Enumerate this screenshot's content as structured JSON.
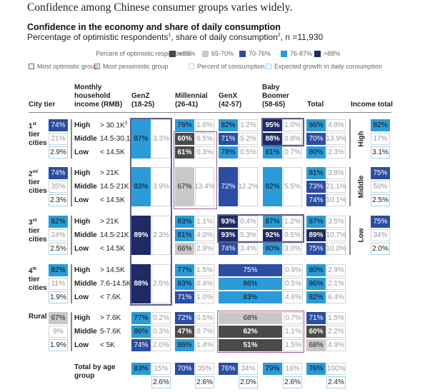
{
  "headline": "Confidence among Chinese consumer groups varies widely.",
  "chart_title": "Confidence in the economy and share of daily consumption",
  "chart_subtitle": {
    "part1": "Percentage of optimistic respondents",
    "sup1": "1",
    "part2": ", share of daily consumption",
    "sup2": "2",
    "part3": ", n =11,930"
  },
  "colors": {
    "lt65": "#4a4a4a",
    "r65_70": "#c8c8c8",
    "r70_76": "#2b4ea3",
    "r76_87": "#2a9bd8",
    "gt88": "#1f2a66",
    "most_optimistic": "#5a6290",
    "most_pessimistic": "#a35a9c",
    "consumption_border": "#d3d3d3",
    "growth_border": "#9fd3ef"
  },
  "legend": {
    "heading": "Percent of optimistic respondents",
    "bins": [
      {
        "label": "<65%",
        "key": "lt65"
      },
      {
        "label": "65-70%",
        "key": "r65_70"
      },
      {
        "label": "70-76%",
        "key": "r70_76"
      },
      {
        "label": "76-87%",
        "key": "r76_87"
      },
      {
        "label": ">88%",
        "key": "gt88"
      }
    ],
    "outlines": [
      "Most optimistic group",
      "Most pessimistic group",
      "Percent of consumption",
      "Expected growth in daily consumption"
    ]
  },
  "headers": {
    "city_tier": "City tier",
    "income": [
      "Monthly",
      "household",
      "income (RMB)"
    ],
    "genz": [
      "GenZ",
      "(18-25)"
    ],
    "millennial": [
      "Millennial",
      "(26-41)"
    ],
    "genx": [
      "GenX",
      "(42-57)"
    ],
    "boomer": [
      "Baby",
      "Boomer",
      "(58-65)"
    ],
    "total": "Total",
    "income_total": "Income total"
  },
  "income_groups": [
    "High",
    "Middle",
    "Low"
  ],
  "chart_data": {
    "type": "table",
    "title": "Confidence in the economy and share of daily consumption",
    "age_groups": [
      "GenZ (18-25)",
      "Millennial (26-41)",
      "GenX (42-57)",
      "Baby Boomer (58-65)",
      "Total"
    ],
    "tiers": [
      {
        "name": [
          "1",
          "st",
          "tier",
          "cities"
        ],
        "optimistic": "74%",
        "optimistic_bin": "r70_76",
        "consumption": "21%",
        "growth": "2.9%",
        "rows": [
          {
            "income": "High",
            "range": "> 30.1K",
            "range_sup": "3"
          },
          {
            "income": "Middle",
            "range": "14.5-30.1K"
          },
          {
            "income": "Low",
            "range": "< 14.5K"
          }
        ],
        "genz": {
          "merged": true,
          "opt": "87%",
          "bin": "r76_87",
          "cons": "3.3%"
        },
        "millennial": [
          {
            "opt": "76%",
            "bin": "r76_87",
            "cons": "1.6%"
          },
          {
            "opt": "60%",
            "bin": "lt65",
            "cons": "6.5%"
          },
          {
            "opt": "61%",
            "bin": "lt65",
            "cons": "0.3%"
          }
        ],
        "genx": [
          {
            "opt": "82%",
            "bin": "r76_87",
            "cons": "1.2%"
          },
          {
            "opt": "71%",
            "bin": "r70_76",
            "cons": "5.2%"
          },
          {
            "opt": "78%",
            "bin": "r76_87",
            "cons": "0.5%"
          }
        ],
        "boomer": [
          {
            "opt": "95%",
            "bin": "gt88",
            "cons": "1.0%"
          },
          {
            "opt": "88%",
            "bin": "gt88",
            "cons": "0.8%"
          },
          {
            "opt": "81%",
            "bin": "r76_87",
            "cons": "0.7%"
          }
        ],
        "total": [
          {
            "opt": "86%",
            "bin": "r76_87",
            "cons": "4.8%"
          },
          {
            "opt": "70%",
            "bin": "r70_76",
            "cons": "13.9%"
          },
          {
            "opt": "80%",
            "bin": "r76_87",
            "cons": "2.3%"
          }
        ]
      },
      {
        "name": [
          "2",
          "nd",
          "tier",
          "cities"
        ],
        "optimistic": "74%",
        "optimistic_bin": "r70_76",
        "consumption": "35%",
        "growth": "2.3%",
        "rows": [
          {
            "income": "High",
            "range": "> 21K"
          },
          {
            "income": "Middle",
            "range": "14.5-21K"
          },
          {
            "income": "Low",
            "range": "< 14.5K"
          }
        ],
        "genz": {
          "merged": true,
          "opt": "83%",
          "bin": "r76_87",
          "cons": "3.9%"
        },
        "millennial": {
          "merged": true,
          "opt": "67%",
          "bin": "r65_70",
          "cons": "13.4%"
        },
        "genx": {
          "merged": true,
          "opt": "72%",
          "bin": "r70_76",
          "cons": "12.2%"
        },
        "boomer": {
          "merged": true,
          "opt": "82%",
          "bin": "r76_87",
          "cons": "5.5%"
        },
        "total": [
          {
            "opt": "81%",
            "bin": "r76_87",
            "cons": "3.8%"
          },
          {
            "opt": "73%",
            "bin": "r70_76",
            "cons": "21.1%"
          },
          {
            "opt": "74%",
            "bin": "r70_76",
            "cons": "10.1%"
          }
        ]
      },
      {
        "name": [
          "3",
          "rd",
          "tier",
          "cities"
        ],
        "optimistic": "82%",
        "optimistic_bin": "r76_87",
        "consumption": "24%",
        "growth": "2.5%",
        "rows": [
          {
            "income": "High",
            "range": "> 21K"
          },
          {
            "income": "Middle",
            "range": "14.5-21K"
          },
          {
            "income": "Low",
            "range": "< 14.5K"
          }
        ],
        "genz": {
          "merged": true,
          "opt": "89%",
          "bin": "gt88",
          "cons": "2.3%"
        },
        "millennial": [
          {
            "opt": "83%",
            "bin": "r76_87",
            "cons": "1.1%"
          },
          {
            "opt": "81%",
            "bin": "r76_87",
            "cons": "4.0%"
          },
          {
            "opt": "66%",
            "bin": "r65_70",
            "cons": "2.9%"
          }
        ],
        "genx": [
          {
            "opt": "93%",
            "bin": "gt88",
            "cons": "0.4%"
          },
          {
            "opt": "93%",
            "bin": "gt88",
            "cons": "5.3%"
          },
          {
            "opt": "74%",
            "bin": "r70_76",
            "cons": "3.4%"
          }
        ],
        "boomer": [
          {
            "opt": "87%",
            "bin": "r76_87",
            "cons": "1.2%"
          },
          {
            "opt": "92%",
            "bin": "gt88",
            "cons": "0.5%"
          },
          {
            "opt": "80%",
            "bin": "r76_87",
            "cons": "3.0%"
          }
        ],
        "total": [
          {
            "opt": "87%",
            "bin": "r76_87",
            "cons": "3.5%"
          },
          {
            "opt": "89%",
            "bin": "gt88",
            "cons": "10.7%"
          },
          {
            "opt": "75%",
            "bin": "r70_76",
            "cons": "10.0%"
          }
        ]
      },
      {
        "name": [
          "4",
          "th",
          "tier",
          "cities"
        ],
        "optimistic": "82%",
        "optimistic_bin": "r76_87",
        "consumption": "11%",
        "growth": "1.9%",
        "rows": [
          {
            "income": "High",
            "range": "> 14.5K"
          },
          {
            "income": "Middle",
            "range": "7.6-14.5K"
          },
          {
            "income": "Low",
            "range": "< 7.6K"
          }
        ],
        "genz": {
          "merged": true,
          "opt": "88%",
          "bin": "gt88",
          "cons": "2.5%"
        },
        "millennial": [
          {
            "opt": "77%",
            "bin": "r76_87",
            "cons": "1.5%"
          },
          {
            "opt": "83%",
            "bin": "r76_87",
            "cons": "0.4%"
          },
          {
            "opt": "71%",
            "bin": "r70_76",
            "cons": "1.0%"
          }
        ],
        "genx_boomer": [
          {
            "opt": "75%",
            "bin": "r70_76",
            "cons": "0.9%"
          },
          {
            "opt": "86%",
            "bin": "r76_87",
            "cons": "0.5%"
          },
          {
            "opt": "83%",
            "bin": "r76_87",
            "cons": "4.6%"
          }
        ],
        "total": [
          {
            "opt": "80%",
            "bin": "r76_87",
            "cons": "2.9%"
          },
          {
            "opt": "86%",
            "bin": "r76_87",
            "cons": "2.1%"
          },
          {
            "opt": "82%",
            "bin": "r76_87",
            "cons": "6.4%"
          }
        ]
      },
      {
        "name": [
          "Rural"
        ],
        "optimistic": "67%",
        "optimistic_bin": "r65_70",
        "consumption": "9%",
        "growth": "1.9%",
        "rows": [
          {
            "income": "High",
            "range": "> 7.6K"
          },
          {
            "income": "Middle",
            "range": "5-7.6K"
          },
          {
            "income": "Low",
            "range": "< 5K"
          }
        ],
        "genz": [
          {
            "opt": "77%",
            "bin": "r76_87",
            "cons": "0.2%"
          },
          {
            "opt": "86%",
            "bin": "r76_87",
            "cons": "0.3%"
          },
          {
            "opt": "74%",
            "bin": "r70_76",
            "cons": "2.0%"
          }
        ],
        "millennial": [
          {
            "opt": "72%",
            "bin": "r70_76",
            "cons": "0.5%"
          },
          {
            "opt": "47%",
            "bin": "lt65",
            "cons": "0.7%"
          },
          {
            "opt": "86%",
            "bin": "r76_87",
            "cons": "1.4%"
          }
        ],
        "genx_boomer": [
          {
            "opt": "68%",
            "bin": "r65_70",
            "cons": "0.7%"
          },
          {
            "opt": "62%",
            "bin": "lt65",
            "cons": "1.1%"
          },
          {
            "opt": "51%",
            "bin": "lt65",
            "cons": "1.5%"
          }
        ],
        "total": [
          {
            "opt": "71%",
            "bin": "r70_76",
            "cons": "1.5%"
          },
          {
            "opt": "60%",
            "bin": "lt65",
            "cons": "2.2%"
          },
          {
            "opt": "68%",
            "bin": "r65_70",
            "cons": "4.9%"
          }
        ]
      }
    ],
    "income_totals": [
      {
        "group": "High",
        "optimistic": "82%",
        "bin": "r76_87",
        "consumption": "17%",
        "growth": "3.1%"
      },
      {
        "group": "Middle",
        "optimistic": "75%",
        "bin": "r70_76",
        "consumption": "50%",
        "growth": "2.5%"
      },
      {
        "group": "Low",
        "optimistic": "75%",
        "bin": "r70_76",
        "consumption": "34%",
        "growth": "2.0%"
      }
    ],
    "total_by_age": {
      "label": [
        "Total by age",
        "group"
      ],
      "values": [
        {
          "opt": "83%",
          "bin": "r76_87",
          "cons": "15%",
          "growth": "2.6%"
        },
        {
          "opt": "70%",
          "bin": "r70_76",
          "cons": "35%",
          "growth": "2.6%"
        },
        {
          "opt": "76%",
          "bin": "r70_76",
          "cons": "34%",
          "growth": "2.0%"
        },
        {
          "opt": "79%",
          "bin": "r76_87",
          "cons": "16%",
          "growth": "2.6%"
        },
        {
          "opt": "76%",
          "bin": "r76_87",
          "cons": "100%",
          "growth": "2.4%"
        }
      ]
    }
  }
}
